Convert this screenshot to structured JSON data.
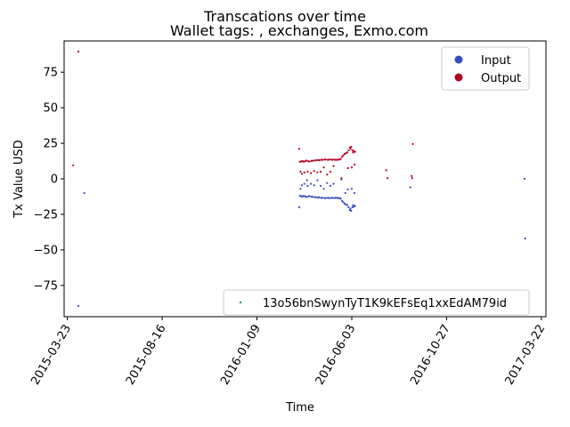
{
  "chart_data": {
    "type": "scatter",
    "title": "Transcations over time",
    "subtitle": "Wallet tags: , exchanges, Exmo.com",
    "xlabel": "Time",
    "ylabel": "Tx Value USD",
    "xlim": [
      "2015-03-18",
      "2017-03-29"
    ],
    "ylim": [
      -97,
      97
    ],
    "x_ticks": [
      "2015-03-23",
      "2015-08-16",
      "2016-01-09",
      "2016-06-03",
      "2016-10-27",
      "2017-03-22"
    ],
    "y_ticks": [
      -75,
      -50,
      -25,
      0,
      25,
      50,
      75
    ],
    "grid": false,
    "legend_top": {
      "placement": "top-right",
      "entries": [
        "Input",
        "Output"
      ]
    },
    "legend_bottom": {
      "placement": "bottom-right",
      "entries": [
        "13o56bnSwynTyT1K9kEFsEq1xxEdAM79id"
      ]
    },
    "colors": {
      "Input": "#3b4cc0",
      "Output": "#b40426",
      "address": "#2e8b57"
    },
    "series": [
      {
        "name": "Output",
        "points": [
          [
            "2015-04-01",
            9.5
          ],
          [
            "2015-04-09",
            89.5
          ],
          [
            "2016-03-14",
            21
          ],
          [
            "2016-03-15",
            12
          ],
          [
            "2016-03-16",
            5
          ],
          [
            "2016-03-17",
            12.2
          ],
          [
            "2016-03-18",
            3.5
          ],
          [
            "2016-03-19",
            12.5
          ],
          [
            "2016-03-21",
            12
          ],
          [
            "2016-03-22",
            4.5
          ],
          [
            "2016-03-23",
            12.3
          ],
          [
            "2016-03-25",
            12.8
          ],
          [
            "2016-03-27",
            5
          ],
          [
            "2016-03-28",
            12.4
          ],
          [
            "2016-03-30",
            12.2
          ],
          [
            "2016-04-01",
            4
          ],
          [
            "2016-04-02",
            12.6
          ],
          [
            "2016-04-04",
            12.7
          ],
          [
            "2016-04-06",
            5.5
          ],
          [
            "2016-04-07",
            12.9
          ],
          [
            "2016-04-09",
            13
          ],
          [
            "2016-04-11",
            4.5
          ],
          [
            "2016-04-12",
            13.2
          ],
          [
            "2016-04-14",
            13.1
          ],
          [
            "2016-04-16",
            5
          ],
          [
            "2016-04-17",
            13.4
          ],
          [
            "2016-04-19",
            13.3
          ],
          [
            "2016-04-21",
            8
          ],
          [
            "2016-04-22",
            13.5
          ],
          [
            "2016-04-24",
            13.6
          ],
          [
            "2016-04-26",
            3
          ],
          [
            "2016-04-27",
            13.4
          ],
          [
            "2016-04-29",
            13.5
          ],
          [
            "2016-05-01",
            5
          ],
          [
            "2016-05-02",
            13.6
          ],
          [
            "2016-05-04",
            13.4
          ],
          [
            "2016-05-06",
            9
          ],
          [
            "2016-05-07",
            13.5
          ],
          [
            "2016-05-09",
            13.4
          ],
          [
            "2016-05-11",
            13.3
          ],
          [
            "2016-05-13",
            13.6
          ],
          [
            "2016-05-15",
            13.5
          ],
          [
            "2016-05-17",
            14
          ],
          [
            "2016-05-18",
            0.5
          ],
          [
            "2016-05-19",
            15.5
          ],
          [
            "2016-05-21",
            16.5
          ],
          [
            "2016-05-23",
            17.5
          ],
          [
            "2016-05-25",
            18
          ],
          [
            "2016-05-27",
            18.5
          ],
          [
            "2016-05-28",
            7.5
          ],
          [
            "2016-05-29",
            20
          ],
          [
            "2016-05-31",
            22
          ],
          [
            "2016-06-01",
            21
          ],
          [
            "2016-06-02",
            22.5
          ],
          [
            "2016-06-03",
            8
          ],
          [
            "2016-06-04",
            20
          ],
          [
            "2016-06-05",
            18.5
          ],
          [
            "2016-06-06",
            19.5
          ],
          [
            "2016-06-07",
            10
          ],
          [
            "2016-06-08",
            19
          ],
          [
            "2016-07-26",
            6
          ],
          [
            "2016-07-28",
            0.5
          ],
          [
            "2016-09-03",
            2
          ],
          [
            "2016-09-04",
            0.5
          ],
          [
            "2016-09-05",
            24.5
          ]
        ]
      },
      {
        "name": "Input",
        "points": [
          [
            "2015-04-09",
            -89.5
          ],
          [
            "2015-04-18",
            -10
          ],
          [
            "2016-03-14",
            -20
          ],
          [
            "2016-03-15",
            -12
          ],
          [
            "2016-03-16",
            -7
          ],
          [
            "2016-03-17",
            -12.2
          ],
          [
            "2016-03-18",
            -4.5
          ],
          [
            "2016-03-19",
            -12.5
          ],
          [
            "2016-03-21",
            -12
          ],
          [
            "2016-03-22",
            -3.5
          ],
          [
            "2016-03-23",
            -12.3
          ],
          [
            "2016-03-25",
            -12.8
          ],
          [
            "2016-03-26",
            -1
          ],
          [
            "2016-03-27",
            -5
          ],
          [
            "2016-03-28",
            -12.4
          ],
          [
            "2016-03-30",
            -12.2
          ],
          [
            "2016-04-01",
            -3.5
          ],
          [
            "2016-04-02",
            -12.6
          ],
          [
            "2016-04-04",
            -12.7
          ],
          [
            "2016-04-06",
            -4.5
          ],
          [
            "2016-04-07",
            -12.9
          ],
          [
            "2016-04-09",
            -13
          ],
          [
            "2016-04-11",
            -1
          ],
          [
            "2016-04-12",
            -13.2
          ],
          [
            "2016-04-14",
            -13.1
          ],
          [
            "2016-04-16",
            -5
          ],
          [
            "2016-04-17",
            -13.4
          ],
          [
            "2016-04-19",
            -13.3
          ],
          [
            "2016-04-21",
            -7
          ],
          [
            "2016-04-22",
            -13.5
          ],
          [
            "2016-04-24",
            -13.6
          ],
          [
            "2016-04-26",
            -3
          ],
          [
            "2016-04-27",
            -13.4
          ],
          [
            "2016-04-29",
            -13.5
          ],
          [
            "2016-05-01",
            -5
          ],
          [
            "2016-05-02",
            -13.6
          ],
          [
            "2016-05-04",
            -13.4
          ],
          [
            "2016-05-06",
            -3.5
          ],
          [
            "2016-05-07",
            -13.5
          ],
          [
            "2016-05-09",
            -13.4
          ],
          [
            "2016-05-11",
            -13.3
          ],
          [
            "2016-05-13",
            -13.6
          ],
          [
            "2016-05-15",
            -13.5
          ],
          [
            "2016-05-17",
            -14
          ],
          [
            "2016-05-18",
            -0.5
          ],
          [
            "2016-05-19",
            -15.5
          ],
          [
            "2016-05-21",
            -16.5
          ],
          [
            "2016-05-23",
            -17.5
          ],
          [
            "2016-05-24",
            -10
          ],
          [
            "2016-05-25",
            -18
          ],
          [
            "2016-05-27",
            -18.5
          ],
          [
            "2016-05-28",
            -7.5
          ],
          [
            "2016-05-29",
            -20
          ],
          [
            "2016-05-31",
            -22
          ],
          [
            "2016-06-01",
            -21
          ],
          [
            "2016-06-02",
            -22.5
          ],
          [
            "2016-06-03",
            -7
          ],
          [
            "2016-06-04",
            -20
          ],
          [
            "2016-06-05",
            -18.5
          ],
          [
            "2016-06-06",
            -19.5
          ],
          [
            "2016-06-07",
            -10
          ],
          [
            "2016-06-08",
            -19
          ],
          [
            "2016-09-01",
            -6
          ],
          [
            "2017-02-24",
            0
          ],
          [
            "2017-02-25",
            -42
          ]
        ]
      }
    ]
  }
}
